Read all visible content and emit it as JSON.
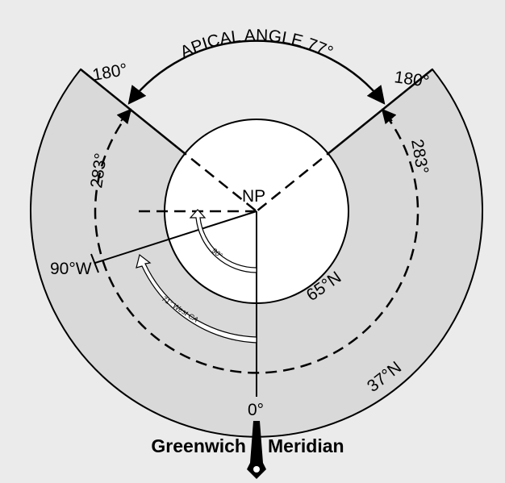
{
  "diagram": {
    "apical_angle": "APICAL ANGLE 77°",
    "left_edge": "180°",
    "right_edge": "180°",
    "left_circle": "283°",
    "right_circle": "283°",
    "pole": "NP",
    "west": "90°W",
    "inner_parallel": "65°N",
    "outer_parallel": "37°N",
    "meridian_zero": "0°",
    "inner_arrow": "90°",
    "outer_arrow": "71° West CA",
    "footer_left": "Greenwich",
    "footer_right": "Meridian"
  }
}
